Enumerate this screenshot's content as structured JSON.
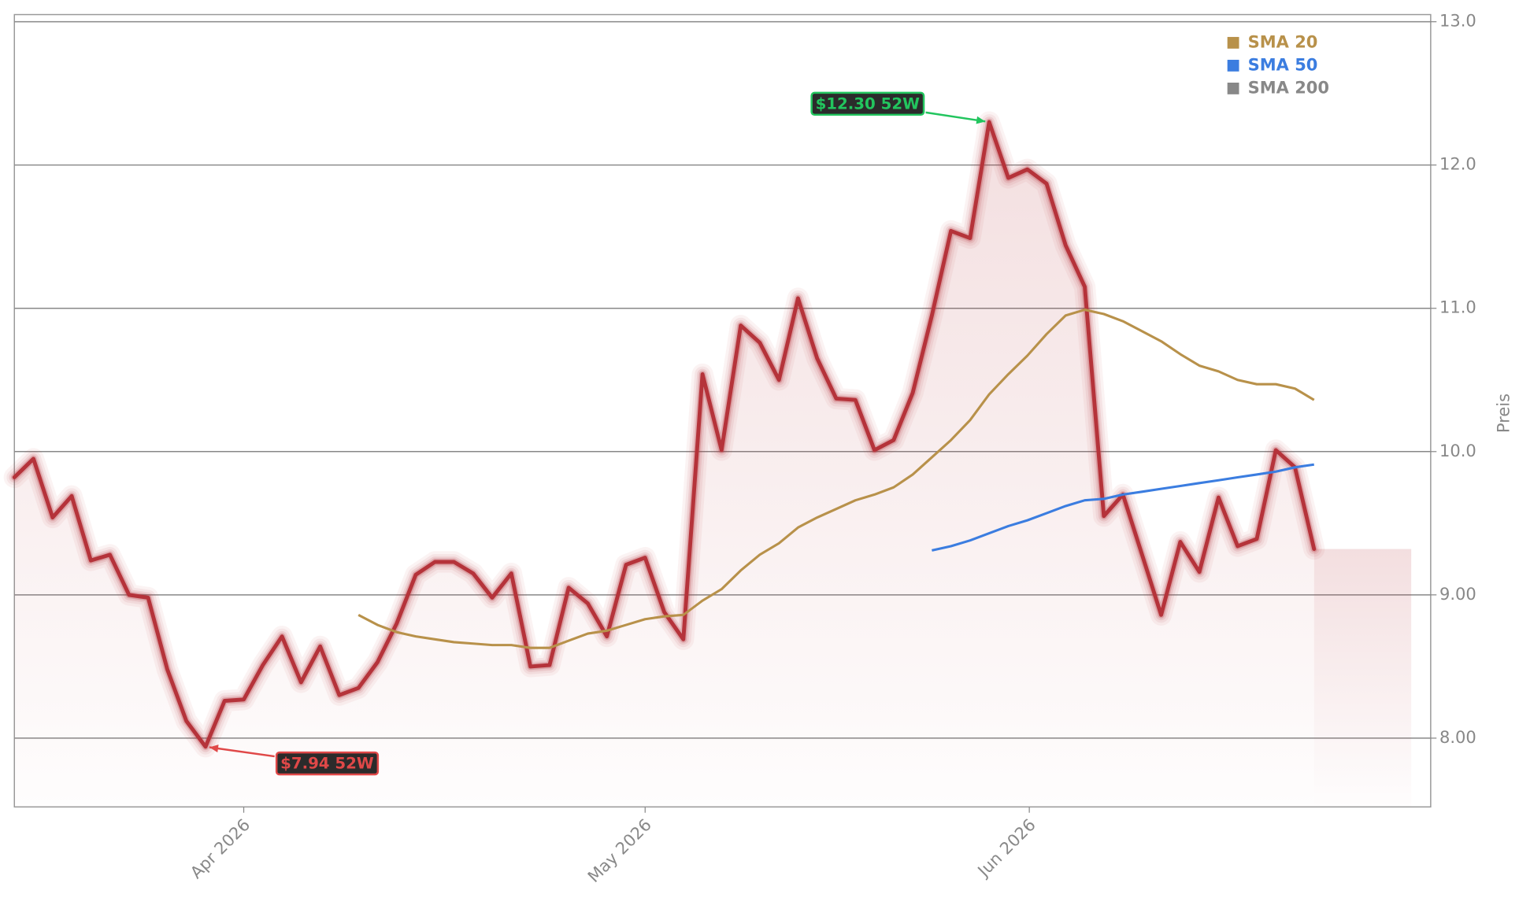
{
  "chart_data": {
    "type": "line",
    "y_axis_label": "Preis",
    "xlim": [
      0,
      74.1
    ],
    "xticks": [
      {
        "value": 12,
        "label": "Apr 2026"
      },
      {
        "value": 33,
        "label": "May 2026"
      },
      {
        "value": 53.1,
        "label": "Jun 2026"
      }
    ],
    "ylim": [
      7.52,
      13.05
    ],
    "yticks": [
      {
        "value": 8,
        "label": "8.00"
      },
      {
        "value": 9,
        "label": "9.00"
      },
      {
        "value": 10,
        "label": "10.0"
      },
      {
        "value": 11,
        "label": "11.0"
      },
      {
        "value": 12,
        "label": "12.0"
      },
      {
        "value": 13,
        "label": "13.0"
      }
    ],
    "grid": true,
    "color": "#b5333a",
    "values": [
      9.82,
      9.95,
      9.54,
      9.69,
      9.24,
      9.28,
      9.0,
      8.98,
      8.48,
      8.12,
      7.94,
      8.26,
      8.27,
      8.51,
      8.71,
      8.39,
      8.64,
      8.3,
      8.35,
      8.53,
      8.8,
      9.14,
      9.23,
      9.23,
      9.15,
      8.98,
      9.15,
      8.5,
      8.51,
      9.05,
      8.94,
      8.71,
      9.21,
      9.26,
      8.88,
      8.69,
      10.54,
      10.01,
      10.88,
      10.76,
      10.5,
      11.07,
      10.65,
      10.37,
      10.36,
      10.01,
      10.08,
      10.41,
      10.95,
      11.54,
      11.49,
      12.3,
      11.91,
      11.97,
      11.87,
      11.44,
      11.15,
      9.55,
      9.7,
      9.28,
      8.86,
      9.37,
      9.16,
      9.68,
      9.34,
      9.39,
      10.01,
      9.89,
      9.32
    ],
    "series": [
      {
        "name": "SMA 20",
        "color": "#b8914a",
        "values": [
          null,
          null,
          null,
          null,
          null,
          null,
          null,
          null,
          null,
          null,
          null,
          null,
          null,
          null,
          null,
          null,
          null,
          null,
          8.86,
          8.79,
          8.74,
          8.71,
          8.69,
          8.67,
          8.66,
          8.65,
          8.65,
          8.63,
          8.63,
          8.68,
          8.73,
          8.75,
          8.79,
          8.83,
          8.85,
          8.86,
          8.96,
          9.04,
          9.17,
          9.28,
          9.36,
          9.47,
          9.54,
          9.6,
          9.66,
          9.7,
          9.75,
          9.84,
          9.96,
          10.08,
          10.22,
          10.4,
          10.54,
          10.67,
          10.82,
          10.95,
          10.99,
          10.96,
          10.91,
          10.84,
          10.77,
          10.68,
          10.6,
          10.56,
          10.5,
          10.47,
          10.47,
          10.44,
          10.36
        ]
      },
      {
        "name": "SMA 50",
        "color": "#3b7de0",
        "values": [
          null,
          null,
          null,
          null,
          null,
          null,
          null,
          null,
          null,
          null,
          null,
          null,
          null,
          null,
          null,
          null,
          null,
          null,
          null,
          null,
          null,
          null,
          null,
          null,
          null,
          null,
          null,
          null,
          null,
          null,
          null,
          null,
          null,
          null,
          null,
          null,
          null,
          null,
          null,
          null,
          null,
          null,
          null,
          null,
          null,
          null,
          null,
          null,
          9.31,
          9.34,
          9.38,
          9.43,
          9.48,
          9.52,
          9.57,
          9.62,
          9.66,
          9.67,
          9.7,
          9.72,
          9.74,
          9.76,
          9.78,
          9.8,
          9.82,
          9.84,
          9.86,
          9.89,
          9.91
        ]
      },
      {
        "name": "SMA 200",
        "color": "#888888",
        "values": [
          null,
          null,
          null,
          null,
          null,
          null,
          null,
          null,
          null,
          null,
          null,
          null,
          null,
          null,
          null,
          null,
          null,
          null,
          null,
          null,
          null,
          null,
          null,
          null,
          null,
          null,
          null,
          null,
          null,
          null,
          null,
          null,
          null,
          null,
          null,
          null,
          null,
          null,
          null,
          null,
          null,
          null,
          null,
          null,
          null,
          null,
          null,
          null,
          null,
          null,
          null,
          null,
          null,
          null,
          null,
          null,
          null,
          null,
          null,
          null,
          null,
          null,
          null,
          null,
          null,
          null,
          null,
          null,
          null
        ]
      }
    ],
    "annotations": [
      {
        "text": "$12.30 52W",
        "x": 51,
        "y": 12.3,
        "color": "#22c55e"
      },
      {
        "text": "$7.94 52W",
        "x": 10,
        "y": 7.94,
        "color": "#e04848"
      }
    ]
  }
}
